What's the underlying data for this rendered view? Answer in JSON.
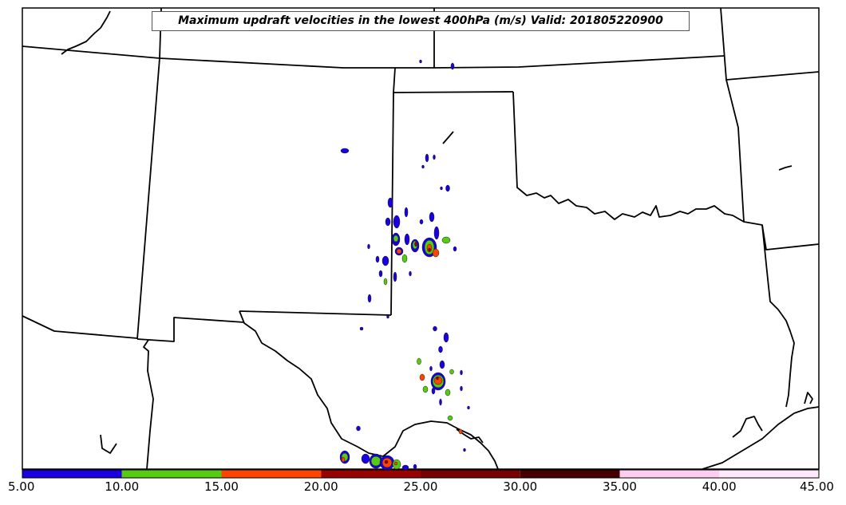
{
  "title": "Maximum updraft velocities in the lowest 400hPa (m/s) Valid: 201805220900",
  "colorbar": {
    "ticks": [
      "5.00",
      "10.00",
      "15.00",
      "20.00",
      "25.00",
      "30.00",
      "35.00",
      "40.00",
      "45.00"
    ],
    "bins": [
      {
        "from": 5,
        "to": 10,
        "color": "#1800e0"
      },
      {
        "from": 10,
        "to": 15,
        "color": "#55cc11"
      },
      {
        "from": 15,
        "to": 20,
        "color": "#ff4400"
      },
      {
        "from": 20,
        "to": 25,
        "color": "#990000"
      },
      {
        "from": 25,
        "to": 30,
        "color": "#770000"
      },
      {
        "from": 30,
        "to": 35,
        "color": "#440000"
      },
      {
        "from": 35,
        "to": 40,
        "color": "#ffccf2"
      },
      {
        "from": 40,
        "to": 45,
        "color": "#ffe8fb"
      }
    ]
  }
}
